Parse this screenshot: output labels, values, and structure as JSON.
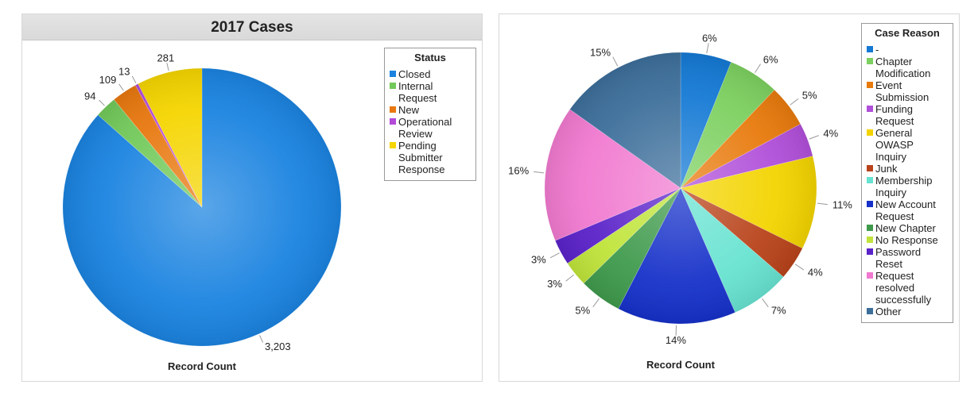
{
  "chart_data": [
    {
      "type": "pie",
      "title": "2017 Cases",
      "xlabel": "Record Count",
      "legend_title": "Status",
      "legend_position": "right",
      "start_angle_deg": 0,
      "slices": [
        {
          "name": "Closed",
          "value": 3203,
          "label": "3,203",
          "color": "#1a83e0"
        },
        {
          "name": "Internal\nRequest",
          "value": 94,
          "label": "94",
          "color": "#72c95a"
        },
        {
          "name": "New",
          "value": 109,
          "label": "109",
          "color": "#e8780f"
        },
        {
          "name": "Operational\nReview",
          "value": 13,
          "label": "13",
          "color": "#b24ad8"
        },
        {
          "name": "Pending\nSubmitter\nResponse",
          "value": 281,
          "label": "281",
          "color": "#f5d500"
        }
      ]
    },
    {
      "type": "pie",
      "title": "",
      "xlabel": "Record Count",
      "legend_title": "Case Reason",
      "legend_position": "right",
      "start_angle_deg": 0,
      "slices": [
        {
          "name": "-",
          "value": 6,
          "label": "6%",
          "color": "#1479d4"
        },
        {
          "name": "Chapter\nModification",
          "value": 6,
          "label": "6%",
          "color": "#7cd05f"
        },
        {
          "name": "Event\nSubmission",
          "value": 5,
          "label": "5%",
          "color": "#e87a0c"
        },
        {
          "name": "Funding\nRequest",
          "value": 4,
          "label": "4%",
          "color": "#b04fd9"
        },
        {
          "name": "General\nOWASP\nInquiry",
          "value": 11,
          "label": "11%",
          "color": "#f3d400"
        },
        {
          "name": "Junk",
          "value": 4,
          "label": "4%",
          "color": "#b8431a"
        },
        {
          "name": "Membership\nInquiry",
          "value": 7,
          "label": "7%",
          "color": "#68e3d1"
        },
        {
          "name": "New Account\nRequest",
          "value": 14,
          "label": "14%",
          "color": "#1631c9"
        },
        {
          "name": "New Chapter",
          "value": 5,
          "label": "5%",
          "color": "#3f9a4c"
        },
        {
          "name": "No Response",
          "value": 3,
          "label": "3%",
          "color": "#c0e43a"
        },
        {
          "name": "Password\nReset",
          "value": 3,
          "label": "3%",
          "color": "#5a22c9"
        },
        {
          "name": "Request\nresolved\nsuccessfully",
          "value": 16,
          "label": "16%",
          "color": "#f17ad0"
        },
        {
          "name": "Other",
          "value": 15,
          "label": "15%",
          "color": "#3c6e9a"
        }
      ]
    }
  ]
}
